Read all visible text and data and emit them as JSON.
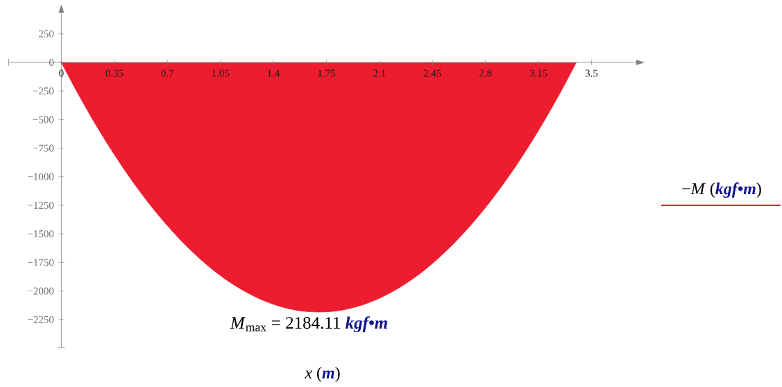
{
  "chart_data": {
    "type": "area",
    "xlabel": "*x* (**m**)",
    "x": [
      0,
      0.1,
      0.2,
      0.3,
      0.4,
      0.5,
      0.6,
      0.7,
      0.8,
      0.9,
      1.0,
      1.1,
      1.2,
      1.3,
      1.4,
      1.5,
      1.6,
      1.7,
      1.8,
      1.9,
      2.0,
      2.1,
      2.2,
      2.3,
      2.4,
      2.5,
      2.6,
      2.7,
      2.8,
      2.9,
      3.0,
      3.1,
      3.2,
      3.3,
      3.4
    ],
    "series": [
      {
        "name": "−*M* (**kgf•m**)",
        "color": "#ed1c2e",
        "values": [
          0,
          -249,
          -484,
          -703,
          -907,
          -1096,
          -1270,
          -1428,
          -1572,
          -1700,
          -1814,
          -1912,
          -1995,
          -2063,
          -2116,
          -2154,
          -2177,
          -2184,
          -2177,
          -2154,
          -2116,
          -2063,
          -1995,
          -1912,
          -1814,
          -1700,
          -1572,
          -1428,
          -1270,
          -1096,
          -907,
          -703,
          -484,
          -249,
          0
        ]
      }
    ],
    "xlim": [
      -0.35,
      3.8
    ],
    "ylim": [
      -2500,
      440
    ],
    "xticks": [
      0,
      0.35,
      0.7,
      1.05,
      1.4,
      1.75,
      2.1,
      2.45,
      2.8,
      3.15,
      3.5
    ],
    "yticks": [
      {
        "value": -2250,
        "label": "−2250"
      },
      {
        "value": -2000,
        "label": "−2000"
      },
      {
        "value": -1750,
        "label": "−1750"
      },
      {
        "value": -1500,
        "label": "−1500"
      },
      {
        "value": -1250,
        "label": "−1250"
      },
      {
        "value": -1000,
        "label": "−1000"
      },
      {
        "value": -750,
        "label": "−750"
      },
      {
        "value": -500,
        "label": "−500"
      },
      {
        "value": -250,
        "label": "−250"
      },
      0,
      250
    ],
    "annotations": [
      {
        "text": "*M*$_{max}$ = 2184.11 **kgf•m**",
        "x": 1.7,
        "y": -2184
      }
    ],
    "legend": "right"
  }
}
